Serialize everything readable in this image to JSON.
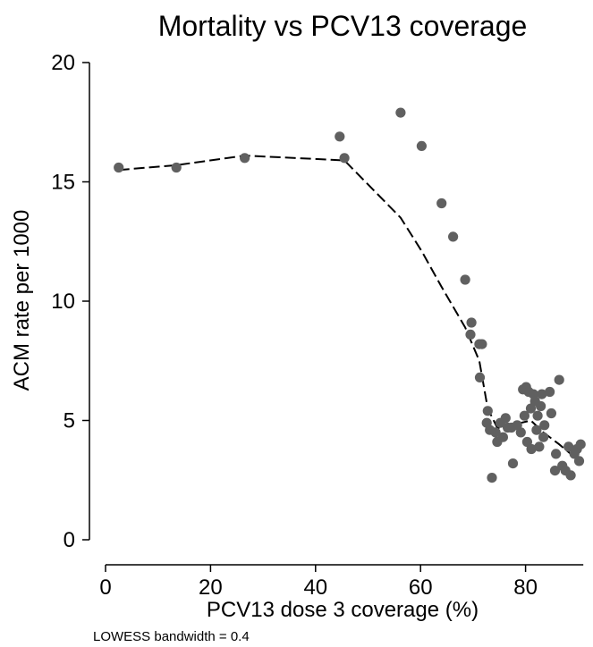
{
  "chart_data": {
    "type": "scatter",
    "title": "Mortality vs PCV13 coverage",
    "xlabel": "PCV13 dose 3 coverage (%)",
    "ylabel": "ACM rate per 1000",
    "xlim": [
      0,
      91
    ],
    "ylim": [
      0,
      20
    ],
    "xticks": [
      0,
      20,
      40,
      60,
      80
    ],
    "yticks": [
      0,
      5,
      10,
      15,
      20
    ],
    "grid": false,
    "note": "LOWESS bandwidth = 0.4",
    "colors": {
      "points": "#606060",
      "fit": "#000000",
      "axis": "#000000"
    },
    "points": [
      {
        "x": 2.5,
        "y": 15.6
      },
      {
        "x": 13.5,
        "y": 15.6
      },
      {
        "x": 26.5,
        "y": 16.0
      },
      {
        "x": 44.6,
        "y": 16.9
      },
      {
        "x": 45.5,
        "y": 16.0
      },
      {
        "x": 56.2,
        "y": 17.9
      },
      {
        "x": 60.2,
        "y": 16.5
      },
      {
        "x": 64.0,
        "y": 14.1
      },
      {
        "x": 66.2,
        "y": 12.7
      },
      {
        "x": 68.5,
        "y": 10.9
      },
      {
        "x": 69.7,
        "y": 9.1
      },
      {
        "x": 69.5,
        "y": 8.6
      },
      {
        "x": 71.2,
        "y": 8.2
      },
      {
        "x": 71.7,
        "y": 8.2
      },
      {
        "x": 71.3,
        "y": 6.8
      },
      {
        "x": 72.8,
        "y": 5.4
      },
      {
        "x": 72.6,
        "y": 4.9
      },
      {
        "x": 73.2,
        "y": 4.6
      },
      {
        "x": 73.6,
        "y": 2.6
      },
      {
        "x": 74.3,
        "y": 4.5
      },
      {
        "x": 74.6,
        "y": 4.1
      },
      {
        "x": 75.2,
        "y": 4.9
      },
      {
        "x": 75.7,
        "y": 4.3
      },
      {
        "x": 76.2,
        "y": 5.1
      },
      {
        "x": 76.6,
        "y": 4.7
      },
      {
        "x": 77.3,
        "y": 4.7
      },
      {
        "x": 77.6,
        "y": 3.2
      },
      {
        "x": 78.4,
        "y": 4.8
      },
      {
        "x": 79.1,
        "y": 4.5
      },
      {
        "x": 79.5,
        "y": 6.3
      },
      {
        "x": 79.8,
        "y": 5.2
      },
      {
        "x": 80.1,
        "y": 6.4
      },
      {
        "x": 80.6,
        "y": 6.2
      },
      {
        "x": 80.3,
        "y": 4.1
      },
      {
        "x": 81.0,
        "y": 5.5
      },
      {
        "x": 81.1,
        "y": 3.8
      },
      {
        "x": 81.5,
        "y": 6.1
      },
      {
        "x": 81.8,
        "y": 5.8
      },
      {
        "x": 82.1,
        "y": 4.6
      },
      {
        "x": 82.3,
        "y": 5.2
      },
      {
        "x": 82.6,
        "y": 3.9
      },
      {
        "x": 82.9,
        "y": 5.6
      },
      {
        "x": 83.1,
        "y": 6.1
      },
      {
        "x": 83.4,
        "y": 4.3
      },
      {
        "x": 83.6,
        "y": 4.8
      },
      {
        "x": 84.6,
        "y": 6.2
      },
      {
        "x": 84.9,
        "y": 5.3
      },
      {
        "x": 85.6,
        "y": 2.9
      },
      {
        "x": 85.8,
        "y": 3.6
      },
      {
        "x": 86.4,
        "y": 6.7
      },
      {
        "x": 87.0,
        "y": 3.1
      },
      {
        "x": 87.6,
        "y": 2.9
      },
      {
        "x": 88.2,
        "y": 3.9
      },
      {
        "x": 88.6,
        "y": 2.7
      },
      {
        "x": 89.3,
        "y": 3.6
      },
      {
        "x": 89.8,
        "y": 3.8
      },
      {
        "x": 90.2,
        "y": 3.3
      },
      {
        "x": 90.5,
        "y": 4.0
      }
    ],
    "lowess": [
      {
        "x": 2.5,
        "y": 15.5
      },
      {
        "x": 13.5,
        "y": 15.7
      },
      {
        "x": 26.5,
        "y": 16.1
      },
      {
        "x": 45.5,
        "y": 15.9
      },
      {
        "x": 56.2,
        "y": 13.5
      },
      {
        "x": 60.2,
        "y": 12.1
      },
      {
        "x": 64.0,
        "y": 10.6
      },
      {
        "x": 68.5,
        "y": 8.9
      },
      {
        "x": 71.2,
        "y": 7.5
      },
      {
        "x": 72.8,
        "y": 5.5
      },
      {
        "x": 74.6,
        "y": 4.7
      },
      {
        "x": 76.6,
        "y": 4.6
      },
      {
        "x": 79.1,
        "y": 4.9
      },
      {
        "x": 81.0,
        "y": 5.0
      },
      {
        "x": 83.4,
        "y": 4.5
      },
      {
        "x": 86.4,
        "y": 4.0
      },
      {
        "x": 88.6,
        "y": 3.6
      },
      {
        "x": 90.5,
        "y": 3.4
      }
    ]
  }
}
